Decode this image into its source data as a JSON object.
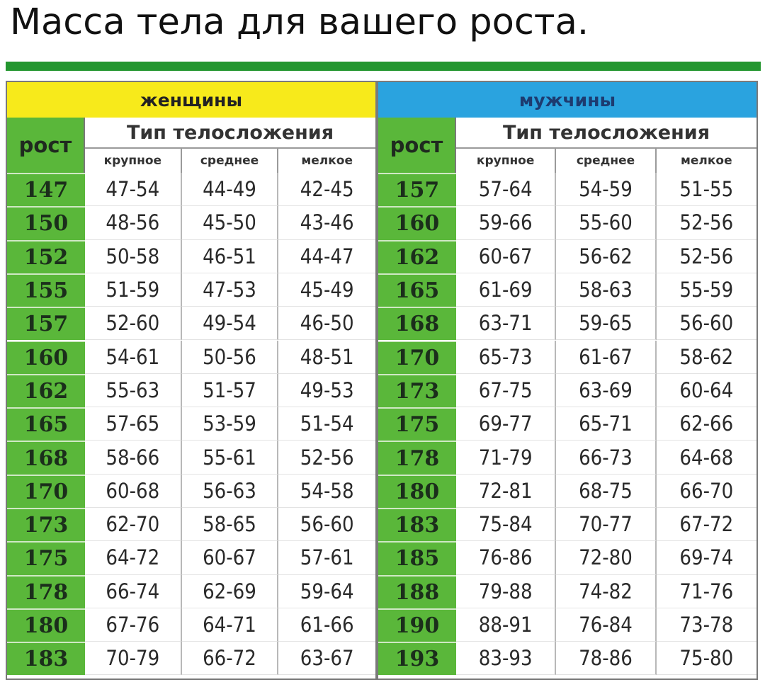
{
  "title": "Масса тела для вашего роста.",
  "women": {
    "label": "женщины",
    "height_label": "рост",
    "type_label": "Тип телосложения",
    "sub": [
      "крупное",
      "среднее",
      "мелкое"
    ],
    "rows": [
      {
        "h": "147",
        "v": [
          "47-54",
          "44-49",
          "42-45"
        ]
      },
      {
        "h": "150",
        "v": [
          "48-56",
          "45-50",
          "43-46"
        ]
      },
      {
        "h": "152",
        "v": [
          "50-58",
          "46-51",
          "44-47"
        ]
      },
      {
        "h": "155",
        "v": [
          "51-59",
          "47-53",
          "45-49"
        ]
      },
      {
        "h": "157",
        "v": [
          "52-60",
          "49-54",
          "46-50"
        ]
      },
      {
        "h": "160",
        "v": [
          "54-61",
          "50-56",
          "48-51"
        ]
      },
      {
        "h": "162",
        "v": [
          "55-63",
          "51-57",
          "49-53"
        ]
      },
      {
        "h": "165",
        "v": [
          "57-65",
          "53-59",
          "51-54"
        ]
      },
      {
        "h": "168",
        "v": [
          "58-66",
          "55-61",
          "52-56"
        ]
      },
      {
        "h": "170",
        "v": [
          "60-68",
          "56-63",
          "54-58"
        ]
      },
      {
        "h": "173",
        "v": [
          "62-70",
          "58-65",
          "56-60"
        ]
      },
      {
        "h": "175",
        "v": [
          "64-72",
          "60-67",
          "57-61"
        ]
      },
      {
        "h": "178",
        "v": [
          "66-74",
          "62-69",
          "59-64"
        ]
      },
      {
        "h": "180",
        "v": [
          "67-76",
          "64-71",
          "61-66"
        ]
      },
      {
        "h": "183",
        "v": [
          "70-79",
          "66-72",
          "63-67"
        ]
      }
    ]
  },
  "men": {
    "label": "мужчины",
    "height_label": "рост",
    "type_label": "Тип телосложения",
    "sub": [
      "крупное",
      "среднее",
      "мелкое"
    ],
    "rows": [
      {
        "h": "157",
        "v": [
          "57-64",
          "54-59",
          "51-55"
        ]
      },
      {
        "h": "160",
        "v": [
          "59-66",
          "55-60",
          "52-56"
        ]
      },
      {
        "h": "162",
        "v": [
          "60-67",
          "56-62",
          "52-56"
        ]
      },
      {
        "h": "165",
        "v": [
          "61-69",
          "58-63",
          "55-59"
        ]
      },
      {
        "h": "168",
        "v": [
          "63-71",
          "59-65",
          "56-60"
        ]
      },
      {
        "h": "170",
        "v": [
          "65-73",
          "61-67",
          "58-62"
        ]
      },
      {
        "h": "173",
        "v": [
          "67-75",
          "63-69",
          "60-64"
        ]
      },
      {
        "h": "175",
        "v": [
          "69-77",
          "65-71",
          "62-66"
        ]
      },
      {
        "h": "178",
        "v": [
          "71-79",
          "66-73",
          "64-68"
        ]
      },
      {
        "h": "180",
        "v": [
          "72-81",
          "68-75",
          "66-70"
        ]
      },
      {
        "h": "183",
        "v": [
          "75-84",
          "70-77",
          "67-72"
        ]
      },
      {
        "h": "185",
        "v": [
          "76-86",
          "72-80",
          "69-74"
        ]
      },
      {
        "h": "188",
        "v": [
          "79-88",
          "74-82",
          "71-76"
        ]
      },
      {
        "h": "190",
        "v": [
          "88-91",
          "76-84",
          "73-78"
        ]
      },
      {
        "h": "193",
        "v": [
          "83-93",
          "78-86",
          "75-80"
        ]
      }
    ]
  },
  "colors": {
    "green": "#5ab73a",
    "yellow": "#f7ea1b",
    "blue": "#2aa3df",
    "title_bar": "#23962f"
  }
}
